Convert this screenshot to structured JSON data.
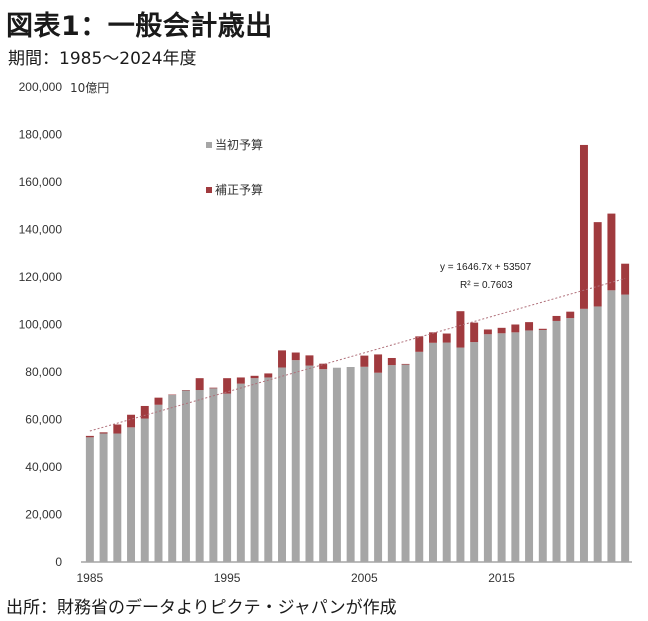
{
  "page": {
    "title": "図表1：一般会計歳出",
    "subtitle": "期間：1985～2024年度",
    "source": "出所：財務省のデータよりピクテ・ジャパンが作成"
  },
  "chart_data": {
    "type": "bar",
    "stacked": true,
    "unit_label": "10億円",
    "ylim": [
      0,
      200000
    ],
    "yticks": [
      0,
      20000,
      40000,
      60000,
      80000,
      100000,
      120000,
      140000,
      160000,
      180000,
      200000
    ],
    "ytick_labels": [
      "0",
      "20,000",
      "40,000",
      "60,000",
      "80,000",
      "100,000",
      "120,000",
      "140,000",
      "160,000",
      "180,000",
      "200,000"
    ],
    "xtick_labels": [
      "1985",
      "1995",
      "2005",
      "2015"
    ],
    "x": [
      1985,
      1986,
      1987,
      1988,
      1989,
      1990,
      1991,
      1992,
      1993,
      1994,
      1995,
      1996,
      1997,
      1998,
      1999,
      2000,
      2001,
      2002,
      2003,
      2004,
      2005,
      2006,
      2007,
      2008,
      2009,
      2010,
      2011,
      2012,
      2013,
      2014,
      2015,
      2016,
      2017,
      2018,
      2019,
      2020,
      2021,
      2022,
      2023,
      2024
    ],
    "series": [
      {
        "name": "当初予算",
        "color": "#a6a6a6",
        "values": [
          52500,
          54100,
          54100,
          56700,
          60400,
          66200,
          70300,
          72200,
          72400,
          73100,
          70900,
          75100,
          77400,
          77700,
          81900,
          85000,
          82700,
          81200,
          81800,
          82100,
          82200,
          79700,
          82900,
          83100,
          88500,
          92300,
          92400,
          90300,
          92600,
          95900,
          96300,
          96700,
          97500,
          97700,
          101500,
          102700,
          106600,
          107600,
          114400,
          112600
        ]
      },
      {
        "name": "補正予算",
        "color": "#a03a3e",
        "values": [
          600,
          500,
          3800,
          5300,
          5300,
          3000,
          200,
          200,
          5000,
          300,
          6500,
          2600,
          1000,
          1700,
          7200,
          3200,
          4300,
          2300,
          0,
          0,
          4700,
          7700,
          3000,
          300,
          6500,
          4400,
          3800,
          15300,
          8200,
          2000,
          2300,
          3300,
          3500,
          500,
          2100,
          2700,
          69000,
          35500,
          32300,
          13000
        ]
      }
    ],
    "trend": {
      "equation": "y = 1646.7x + 53507",
      "r2": "R² = 0.7603",
      "color": "#b0707a"
    },
    "grid": false,
    "legend_placement": "top-left"
  }
}
